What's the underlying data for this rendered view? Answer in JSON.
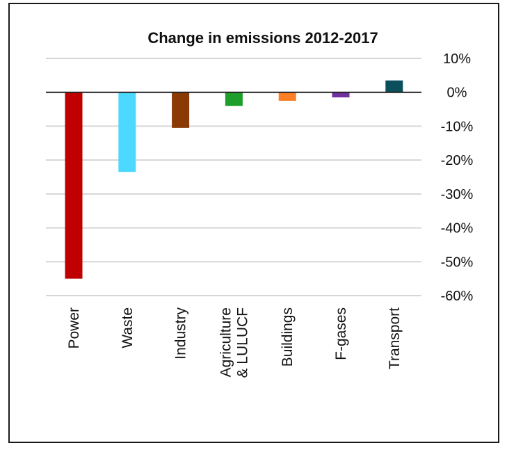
{
  "chart_data": {
    "type": "bar",
    "title": "Change in emissions 2012-2017",
    "xlabel": "",
    "ylabel": "",
    "ylim": [
      -60,
      10
    ],
    "y_tick_values": [
      10,
      0,
      -10,
      -20,
      -30,
      -40,
      -50,
      -60
    ],
    "y_tick_labels": [
      "10%",
      "0%",
      "-10%",
      "-20%",
      "-30%",
      "-40%",
      "-50%",
      "-60%"
    ],
    "grid": true,
    "legend": "none",
    "categories": [
      [
        "Power"
      ],
      [
        "Waste"
      ],
      [
        "Industry"
      ],
      [
        "Agriculture",
        "& LULUCF"
      ],
      [
        "Buildings"
      ],
      [
        "F-gases"
      ],
      [
        "Transport"
      ]
    ],
    "values": [
      -55,
      -23.5,
      -10.5,
      -4,
      -2.5,
      -1.5,
      3.5
    ],
    "colors": [
      "#c00000",
      "#4dd9ff",
      "#8b3a06",
      "#1e9e2a",
      "#ff7f27",
      "#7030a0",
      "#0b4f5c"
    ]
  }
}
